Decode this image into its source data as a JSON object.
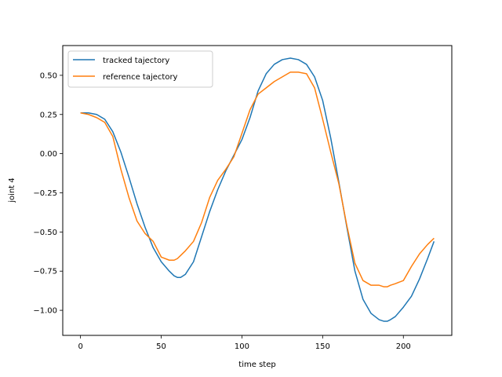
{
  "chart_data": {
    "type": "line",
    "title": "",
    "xlabel": "time step",
    "ylabel": "joint 4",
    "xlim": [
      -11,
      230
    ],
    "ylim": [
      -1.16,
      0.69
    ],
    "xticks": [
      0,
      50,
      100,
      150,
      200
    ],
    "yticks": [
      -1.0,
      -0.75,
      -0.5,
      -0.25,
      0.0,
      0.25,
      0.5
    ],
    "xtick_labels": [
      "0",
      "50",
      "100",
      "150",
      "200"
    ],
    "ytick_labels": [
      "−1.00",
      "−0.75",
      "−0.50",
      "−0.25",
      "0.00",
      "0.25",
      "0.50"
    ],
    "grid": false,
    "legend_position": "upper-left",
    "series": [
      {
        "name": "tracked tajectory",
        "color": "#1f77b4",
        "x": [
          0,
          5,
          10,
          15,
          20,
          25,
          30,
          35,
          40,
          45,
          50,
          55,
          58,
          60,
          62,
          65,
          70,
          75,
          80,
          85,
          90,
          95,
          100,
          105,
          110,
          115,
          120,
          125,
          130,
          135,
          140,
          145,
          150,
          155,
          160,
          165,
          170,
          175,
          180,
          185,
          188,
          190,
          192,
          195,
          200,
          205,
          210,
          215,
          219
        ],
        "y": [
          0.26,
          0.26,
          0.25,
          0.22,
          0.14,
          0.01,
          -0.15,
          -0.32,
          -0.47,
          -0.6,
          -0.69,
          -0.75,
          -0.78,
          -0.79,
          -0.79,
          -0.77,
          -0.69,
          -0.53,
          -0.37,
          -0.23,
          -0.11,
          -0.01,
          0.09,
          0.23,
          0.4,
          0.51,
          0.57,
          0.6,
          0.61,
          0.6,
          0.57,
          0.49,
          0.34,
          0.1,
          -0.18,
          -0.47,
          -0.75,
          -0.93,
          -1.02,
          -1.06,
          -1.07,
          -1.07,
          -1.06,
          -1.04,
          -0.98,
          -0.91,
          -0.8,
          -0.67,
          -0.56
        ]
      },
      {
        "name": "reference tajectory",
        "color": "#ff7f0e",
        "x": [
          0,
          5,
          10,
          15,
          20,
          25,
          30,
          35,
          40,
          45,
          50,
          55,
          58,
          60,
          62,
          65,
          70,
          75,
          80,
          85,
          90,
          95,
          100,
          105,
          110,
          115,
          120,
          125,
          130,
          135,
          140,
          145,
          150,
          155,
          160,
          165,
          170,
          175,
          180,
          185,
          188,
          190,
          192,
          195,
          200,
          205,
          210,
          215,
          219
        ],
        "y": [
          0.26,
          0.25,
          0.23,
          0.2,
          0.11,
          -0.1,
          -0.28,
          -0.43,
          -0.51,
          -0.56,
          -0.66,
          -0.68,
          -0.68,
          -0.67,
          -0.65,
          -0.62,
          -0.56,
          -0.44,
          -0.28,
          -0.17,
          -0.1,
          -0.02,
          0.13,
          0.28,
          0.38,
          0.42,
          0.46,
          0.49,
          0.52,
          0.52,
          0.51,
          0.42,
          0.22,
          0.01,
          -0.19,
          -0.46,
          -0.7,
          -0.81,
          -0.84,
          -0.84,
          -0.85,
          -0.85,
          -0.84,
          -0.83,
          -0.81,
          -0.72,
          -0.64,
          -0.58,
          -0.54
        ]
      }
    ]
  }
}
